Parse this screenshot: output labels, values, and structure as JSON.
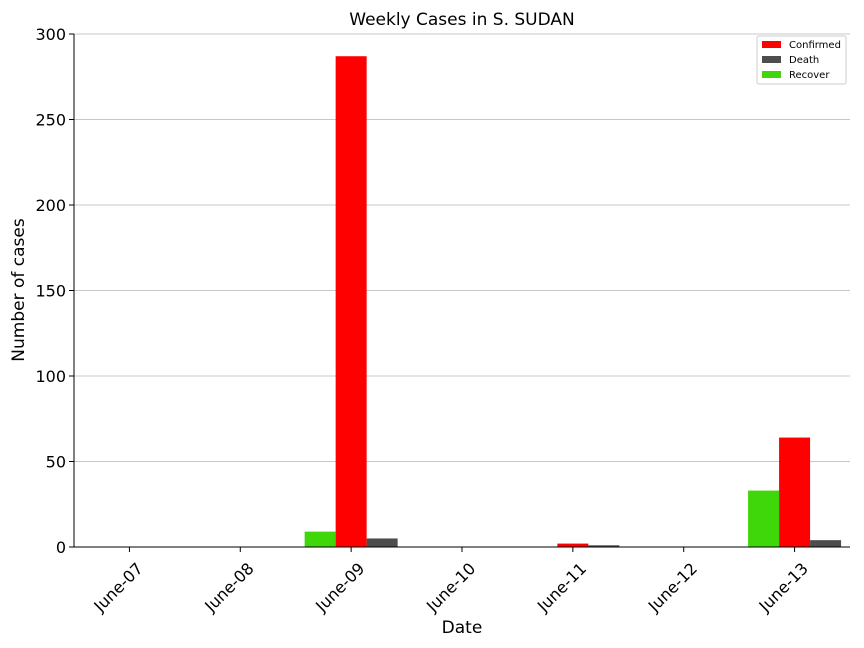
{
  "chart_data": {
    "type": "bar",
    "title": "Weekly Cases in S. SUDAN",
    "xlabel": "Date",
    "ylabel": "Number of cases",
    "categories": [
      "June-07",
      "June-08",
      "June-09",
      "June-10",
      "June-11",
      "June-12",
      "June-13"
    ],
    "series": [
      {
        "name": "Recover",
        "color": "#3fd60a",
        "values": [
          0,
          0,
          9,
          0,
          0,
          0,
          33
        ]
      },
      {
        "name": "Confirmed",
        "color": "#ff0000",
        "values": [
          0,
          0,
          287,
          0,
          2,
          0,
          64
        ]
      },
      {
        "name": "Death",
        "color": "#4d4d4d",
        "values": [
          0,
          0,
          5,
          0,
          1,
          0,
          4
        ]
      }
    ],
    "legend_order": [
      "Confirmed",
      "Death",
      "Recover"
    ],
    "ylim": [
      0,
      300
    ],
    "yticks": [
      0,
      50,
      100,
      150,
      200,
      250,
      300
    ],
    "grid": "horizontal",
    "legend_position": "top-right"
  }
}
